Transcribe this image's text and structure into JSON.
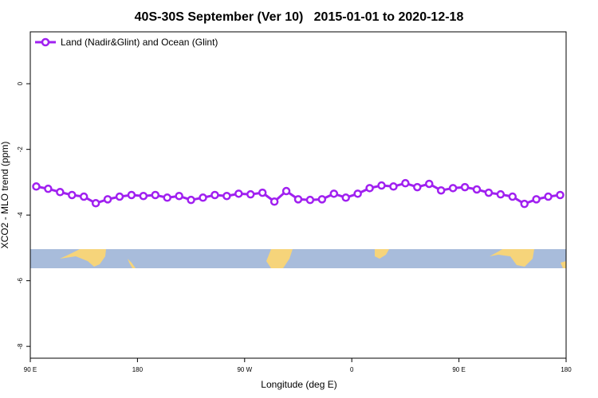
{
  "chart_data": {
    "type": "line",
    "title": "40S-30S September (Ver 10)   2015-01-01 to 2020-12-18",
    "x_label": "Longitude (deg E)",
    "y_label": "XCO2 - MLO trend (ppm)",
    "x": [
      95,
      105,
      115,
      125,
      135,
      145,
      155,
      165,
      175,
      185,
      195,
      205,
      215,
      225,
      235,
      245,
      255,
      265,
      275,
      285,
      295,
      305,
      315,
      325,
      335,
      345,
      355,
      365,
      375,
      385,
      395,
      405,
      415,
      425,
      435,
      445,
      455,
      465,
      475,
      485,
      495,
      505,
      515,
      525,
      535
    ],
    "series": [
      {
        "name": "Land (Nadir&Glint) and Ocean (Glint)",
        "color": "#a020f0",
        "values": [
          -3.13,
          -3.2,
          -3.3,
          -3.39,
          -3.44,
          -3.64,
          -3.52,
          -3.44,
          -3.39,
          -3.42,
          -3.39,
          -3.47,
          -3.42,
          -3.54,
          -3.47,
          -3.39,
          -3.42,
          -3.35,
          -3.37,
          -3.32,
          -3.59,
          -3.27,
          -3.52,
          -3.54,
          -3.52,
          -3.35,
          -3.47,
          -3.35,
          -3.18,
          -3.1,
          -3.13,
          -3.03,
          -3.15,
          -3.05,
          -3.25,
          -3.18,
          -3.15,
          -3.22,
          -3.32,
          -3.37,
          -3.44,
          -3.66,
          -3.52,
          -3.44,
          -3.39
        ]
      }
    ],
    "xlim": [
      90,
      540
    ],
    "xticks": [
      {
        "value": 90,
        "label": "90 E"
      },
      {
        "value": 180,
        "label": "180"
      },
      {
        "value": 270,
        "label": "90 W"
      },
      {
        "value": 360,
        "label": "0"
      },
      {
        "value": 450,
        "label": "90 E"
      },
      {
        "value": 540,
        "label": "180"
      }
    ],
    "ylim": [
      -8.36,
      1.58
    ],
    "yticks": [
      0,
      -2,
      -4,
      -6,
      -8
    ],
    "legend": "top-left"
  }
}
